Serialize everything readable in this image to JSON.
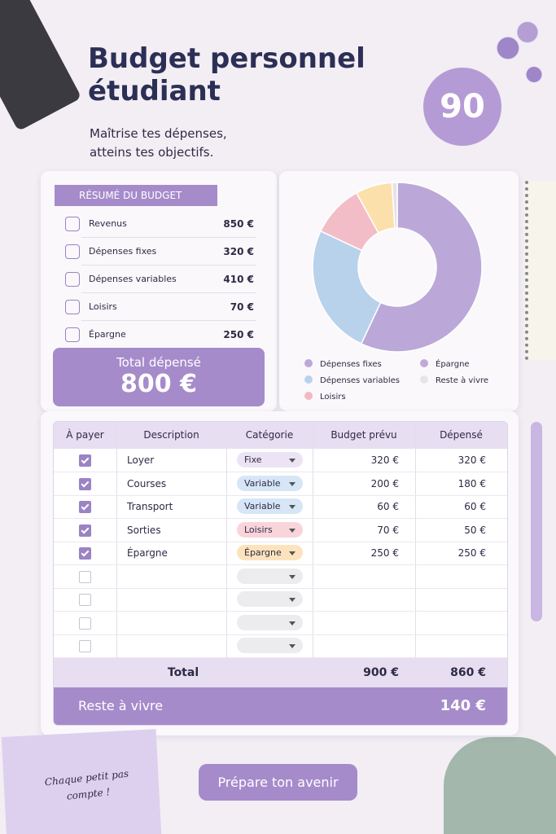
{
  "header": {
    "title": "Budget personnel étudiant",
    "subtitle": "Maîtrise tes dépenses, atteins tes objectifs.",
    "badge": "90"
  },
  "summary": {
    "title": "RÉSUMÉ DU BUDGET",
    "rows": [
      [
        "Revenus",
        "850 €"
      ],
      [
        "Dépenses fixes",
        "320 €"
      ],
      [
        "Dépenses variables",
        "410 €"
      ],
      [
        "Loisirs",
        "70 €"
      ],
      [
        "Épargne",
        "250 €"
      ]
    ],
    "total_label": "Total dépensé",
    "total_value": "800 €"
  },
  "chart_data": {
    "type": "pie",
    "categories": [
      "Dépenses fixes",
      "Dépenses variables",
      "Loisirs",
      "Épargne",
      "Reste à vivre"
    ],
    "values": [
      57,
      25,
      10,
      7,
      1
    ],
    "colors": [
      "#bba8d8",
      "#b9d2eb",
      "#f3bdc8",
      "#fce0ab",
      "#e6e2e9"
    ],
    "legend_colors": [
      "#bba8d8",
      "#b9d2eb",
      "#f3b9c3",
      "#c1aad9",
      "#e8e4ea"
    ]
  },
  "table": {
    "columns": [
      "À payer",
      "Description",
      "Catégorie",
      "Budget prévu",
      "Dépensé"
    ],
    "rows": [
      {
        "checked": true,
        "description": "Loyer",
        "category": "Fixe",
        "category_color": "#ece4f5",
        "budget": "320 €",
        "spent": "320 €"
      },
      {
        "checked": true,
        "description": "Courses",
        "category": "Variable",
        "category_color": "#d6e6f6",
        "budget": "200 €",
        "spent": "180 €"
      },
      {
        "checked": true,
        "description": "Transport",
        "category": "Variable",
        "category_color": "#d6e6f6",
        "budget": "60 €",
        "spent": "60 €"
      },
      {
        "checked": true,
        "description": "Sorties",
        "category": "Loisirs",
        "category_color": "#f9d5db",
        "budget": "70 €",
        "spent": "50 €"
      },
      {
        "checked": true,
        "description": "Épargne",
        "category": "Épargne",
        "category_color": "#fde3bd",
        "budget": "250 €",
        "spent": "250 €"
      },
      {
        "checked": false
      },
      {
        "checked": false
      },
      {
        "checked": false
      },
      {
        "checked": false
      }
    ],
    "total_label": "Total",
    "total_budget": "900 €",
    "total_spent": "860 €",
    "remaining_label": "Reste à vivre",
    "remaining_value": "140 €"
  },
  "note": "Chaque petit pas compte !",
  "button": "Prépare ton avenir"
}
